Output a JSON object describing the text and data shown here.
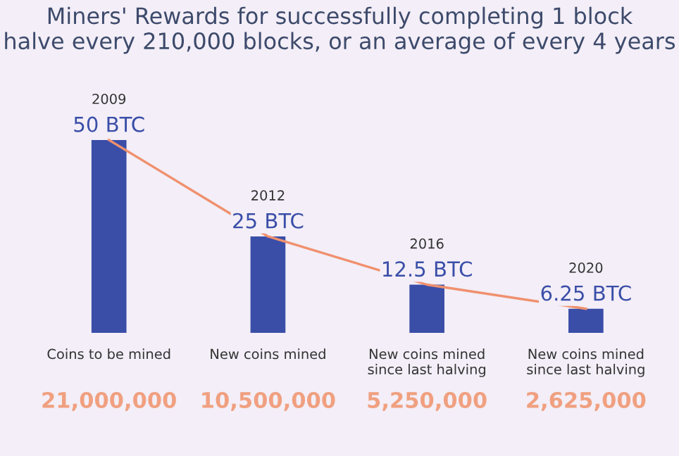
{
  "chart_data": {
    "type": "bar",
    "title": "Miners' Rewards for successfully completing 1 block\nhalve every 210,000 blocks, or an average of every 4 years",
    "categories": [
      "Coins to be mined",
      "New coins mined",
      "New coins mined\nsince last halving",
      "New coins mined\nsince last halving"
    ],
    "series": [
      {
        "type": "bar",
        "color": "#3a4ea8",
        "values": [
          50,
          25,
          12.5,
          6.25
        ],
        "value_labels": [
          "50 BTC",
          "25 BTC",
          "12.5 BTC",
          "6.25 BTC"
        ]
      },
      {
        "type": "line",
        "color": "#f0906e",
        "values": [
          50,
          25,
          12.5,
          6.25
        ]
      }
    ],
    "annotations": [
      "2009",
      "2012",
      "2016",
      "2020",
      "21,000,000",
      "10,500,000",
      "5,250,000",
      "2,625,000"
    ],
    "grid": false,
    "legend": false
  }
}
